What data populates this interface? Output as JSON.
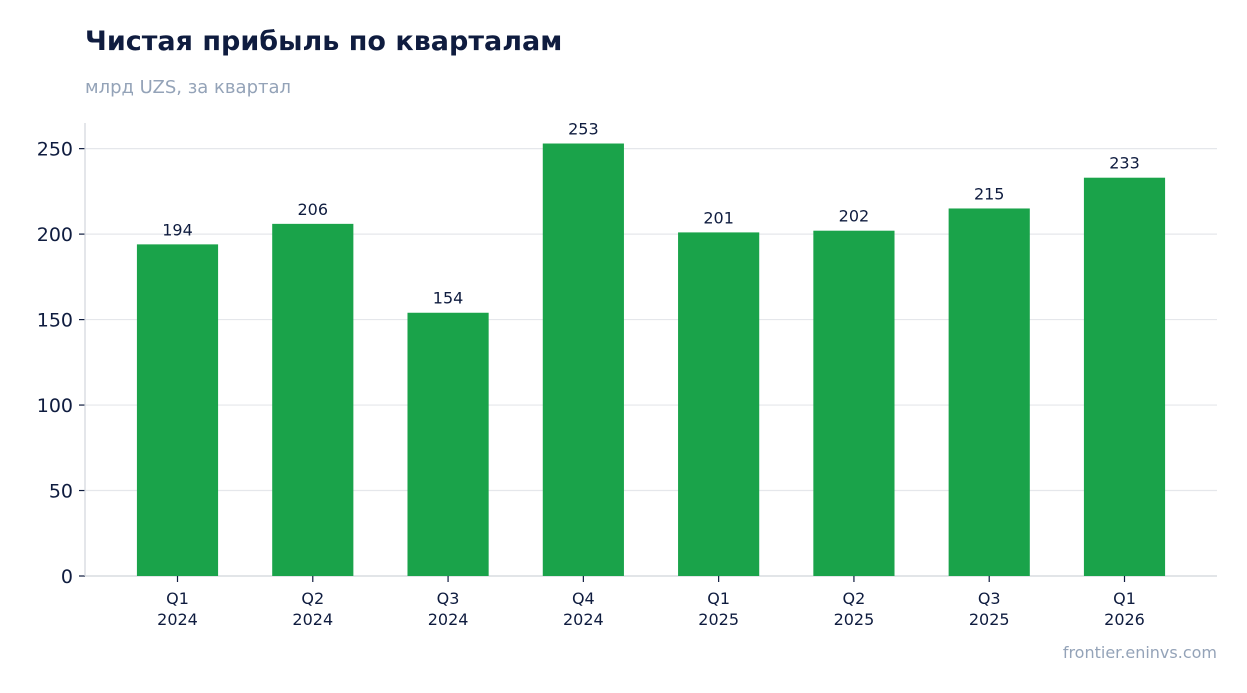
{
  "header": {
    "title": "Чистая прибыль по кварталам",
    "subtitle": "млрд UZS, за квартал"
  },
  "footer": {
    "source": "frontier.eninvs.com"
  },
  "colors": {
    "bar": "#1aa34a",
    "grid": "#e5e7eb",
    "axis": "#d1d5db",
    "text": "#0f1c3f"
  },
  "chart_data": {
    "type": "bar",
    "categories": [
      [
        "Q1",
        "2024"
      ],
      [
        "Q2",
        "2024"
      ],
      [
        "Q3",
        "2024"
      ],
      [
        "Q4",
        "2024"
      ],
      [
        "Q1",
        "2025"
      ],
      [
        "Q2",
        "2025"
      ],
      [
        "Q3",
        "2025"
      ],
      [
        "Q1",
        "2026"
      ]
    ],
    "values": [
      194,
      206,
      154,
      253,
      201,
      202,
      215,
      233
    ],
    "ylim": [
      0,
      265
    ],
    "yticks": [
      0,
      50,
      100,
      150,
      200,
      250
    ],
    "grid": true,
    "legend": "none"
  }
}
